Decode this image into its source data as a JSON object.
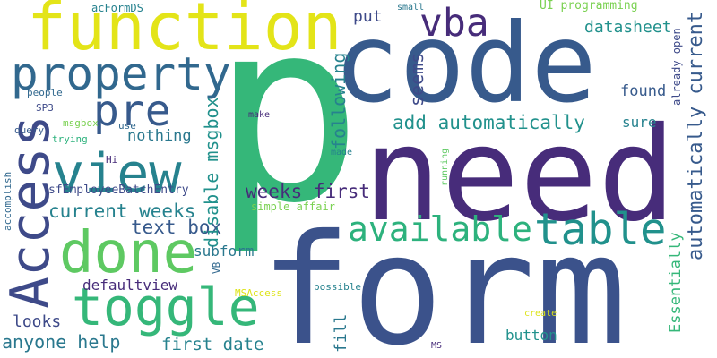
{
  "word_cloud": {
    "background": "#ffffff",
    "words": [
      {
        "text": "p",
        "color": "#35B779",
        "rotation": 0
      },
      {
        "text": "code",
        "color": "#375A8C",
        "rotation": 0
      },
      {
        "text": "need",
        "color": "#472C7A",
        "rotation": 0
      },
      {
        "text": "form",
        "color": "#3B528B",
        "rotation": 0
      },
      {
        "text": "function",
        "color": "#E3E418",
        "rotation": 0
      },
      {
        "text": "Access",
        "color": "#3E4A89",
        "rotation": -90
      },
      {
        "text": "property",
        "color": "#31688E",
        "rotation": 0
      },
      {
        "text": "view",
        "color": "#26828E",
        "rotation": 0
      },
      {
        "text": "pre",
        "color": "#375A8C",
        "rotation": 0
      },
      {
        "text": "done",
        "color": "#5EC962",
        "rotation": 0
      },
      {
        "text": "toggle",
        "color": "#35B779",
        "rotation": 0
      },
      {
        "text": "vba",
        "color": "#472C7A",
        "rotation": 0
      },
      {
        "text": "table",
        "color": "#21918C",
        "rotation": 0
      },
      {
        "text": "available",
        "color": "#2DB27D",
        "rotation": 0
      },
      {
        "text": "automatically current",
        "color": "#375A8C",
        "rotation": -90
      },
      {
        "text": "add automatically",
        "color": "#21918C",
        "rotation": 0
      },
      {
        "text": "weeks first",
        "color": "#472C7A",
        "rotation": 0
      },
      {
        "text": "current weeks",
        "color": "#26828E",
        "rotation": 0
      },
      {
        "text": "text box",
        "color": "#375A8C",
        "rotation": 0
      },
      {
        "text": "disable msgbox",
        "color": "#21918C",
        "rotation": -90
      },
      {
        "text": "datasheet",
        "color": "#21918C",
        "rotation": 0
      },
      {
        "text": "UI programming",
        "color": "#7AD151",
        "rotation": 0
      },
      {
        "text": "found",
        "color": "#375A8C",
        "rotation": 0
      },
      {
        "text": "sure",
        "color": "#26828E",
        "rotation": 0
      },
      {
        "text": "following",
        "color": "#26828E",
        "rotation": -90
      },
      {
        "text": "seems",
        "color": "#3E4A89",
        "rotation": -90
      },
      {
        "text": "put",
        "color": "#3E4A89",
        "rotation": 0
      },
      {
        "text": "nothing",
        "color": "#2A788E",
        "rotation": 0
      },
      {
        "text": "subform",
        "color": "#2A788E",
        "rotation": 0
      },
      {
        "text": "defaultview",
        "color": "#472C7A",
        "rotation": 0
      },
      {
        "text": "looks",
        "color": "#3E4A89",
        "rotation": 0
      },
      {
        "text": "anyone help",
        "color": "#2A788E",
        "rotation": 0
      },
      {
        "text": "first date",
        "color": "#26828E",
        "rotation": 0
      },
      {
        "text": "fill",
        "color": "#2A788E",
        "rotation": -90
      },
      {
        "text": "button",
        "color": "#21918C",
        "rotation": 0
      },
      {
        "text": "Essentially",
        "color": "#35B779",
        "rotation": -90
      },
      {
        "text": "acFormDS",
        "color": "#26828E",
        "rotation": 0
      },
      {
        "text": "small",
        "color": "#2A788E",
        "rotation": 0
      },
      {
        "text": "already open",
        "color": "#3E4A89",
        "rotation": -90
      },
      {
        "text": "people",
        "color": "#31688E",
        "rotation": 0
      },
      {
        "text": "SP3",
        "color": "#3E4A89",
        "rotation": 0
      },
      {
        "text": "msgbox",
        "color": "#7AD151",
        "rotation": 0
      },
      {
        "text": "use",
        "color": "#31688E",
        "rotation": 0
      },
      {
        "text": "query",
        "color": "#375A8C",
        "rotation": 0
      },
      {
        "text": "trying",
        "color": "#2DB27D",
        "rotation": 0
      },
      {
        "text": "make",
        "color": "#472C7A",
        "rotation": 0
      },
      {
        "text": "Hi",
        "color": "#472C7A",
        "rotation": 0
      },
      {
        "text": "made",
        "color": "#26828E",
        "rotation": 0
      },
      {
        "text": "running",
        "color": "#5EC962",
        "rotation": -90
      },
      {
        "text": "accomplish",
        "color": "#31688E",
        "rotation": -90
      },
      {
        "text": "sfEmployeeBatchEntry",
        "color": "#3E4A89",
        "rotation": 0
      },
      {
        "text": "simple affair",
        "color": "#7AD151",
        "rotation": 0
      },
      {
        "text": "VB",
        "color": "#31688E",
        "rotation": -90
      },
      {
        "text": "MSAccess",
        "color": "#DDE318",
        "rotation": 0
      },
      {
        "text": "possible",
        "color": "#26828E",
        "rotation": 0
      },
      {
        "text": "create",
        "color": "#DDE318",
        "rotation": 0
      },
      {
        "text": "MS",
        "color": "#472C7A",
        "rotation": 0
      }
    ]
  }
}
